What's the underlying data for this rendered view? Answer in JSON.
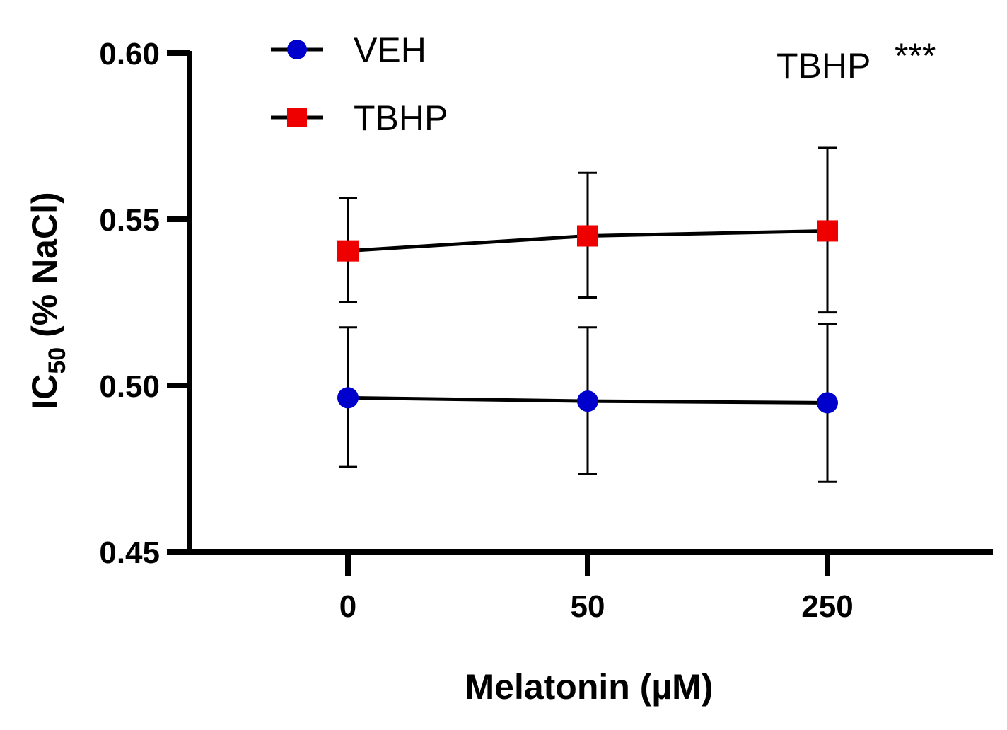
{
  "chart_data": {
    "type": "line",
    "title": "",
    "xlabel": "Melatonin (µM)",
    "ylabel_main": "IC",
    "ylabel_sub": "50",
    "ylabel_rest": " (% NaCl)",
    "categories": [
      "0",
      "50",
      "250"
    ],
    "ylim": [
      0.45,
      0.6
    ],
    "yticks": [
      "0.45",
      "0.50",
      "0.55",
      "0.60"
    ],
    "grid": false,
    "legend_position": "top-left",
    "annotation": {
      "text": "TBHP",
      "stars": "***"
    },
    "series": [
      {
        "name": "VEH",
        "color": "#0000cc",
        "marker": "circle",
        "values": [
          0.4963,
          0.4953,
          0.4948
        ],
        "error_low": [
          0.4755,
          0.4735,
          0.471
        ],
        "error_high": [
          0.5175,
          0.5175,
          0.5185
        ]
      },
      {
        "name": "TBHP",
        "color": "#ee0000",
        "marker": "square",
        "values": [
          0.5405,
          0.545,
          0.5465
        ],
        "error_low": [
          0.525,
          0.5265,
          0.522
        ],
        "error_high": [
          0.5565,
          0.564,
          0.5715
        ]
      }
    ]
  }
}
